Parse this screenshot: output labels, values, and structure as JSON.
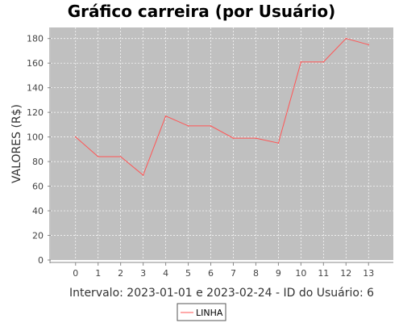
{
  "chart_data": {
    "type": "line",
    "title": "Gráfico carreira (por Usuário)",
    "xlabel": "Intervalo: 2023-01-01 e 2023-02-24 - ID do Usuário: 6",
    "ylabel": "VALORES (R$)",
    "x": [
      0,
      1,
      2,
      3,
      4,
      5,
      6,
      7,
      8,
      9,
      10,
      11,
      12,
      13
    ],
    "series": [
      {
        "name": "LINHA",
        "color": "#ff5555",
        "values": [
          100,
          84,
          84,
          69,
          117,
          109,
          109,
          99,
          99,
          95,
          161,
          161,
          180,
          175
        ]
      }
    ],
    "xlim": [
      -1.1,
      14.1
    ],
    "ylim": [
      0,
      189
    ],
    "yticks": [
      0,
      20,
      40,
      60,
      80,
      100,
      120,
      140,
      160,
      180
    ],
    "grid": true,
    "legend_position": "bottom-center",
    "plot_background": "#c0c0c0"
  }
}
